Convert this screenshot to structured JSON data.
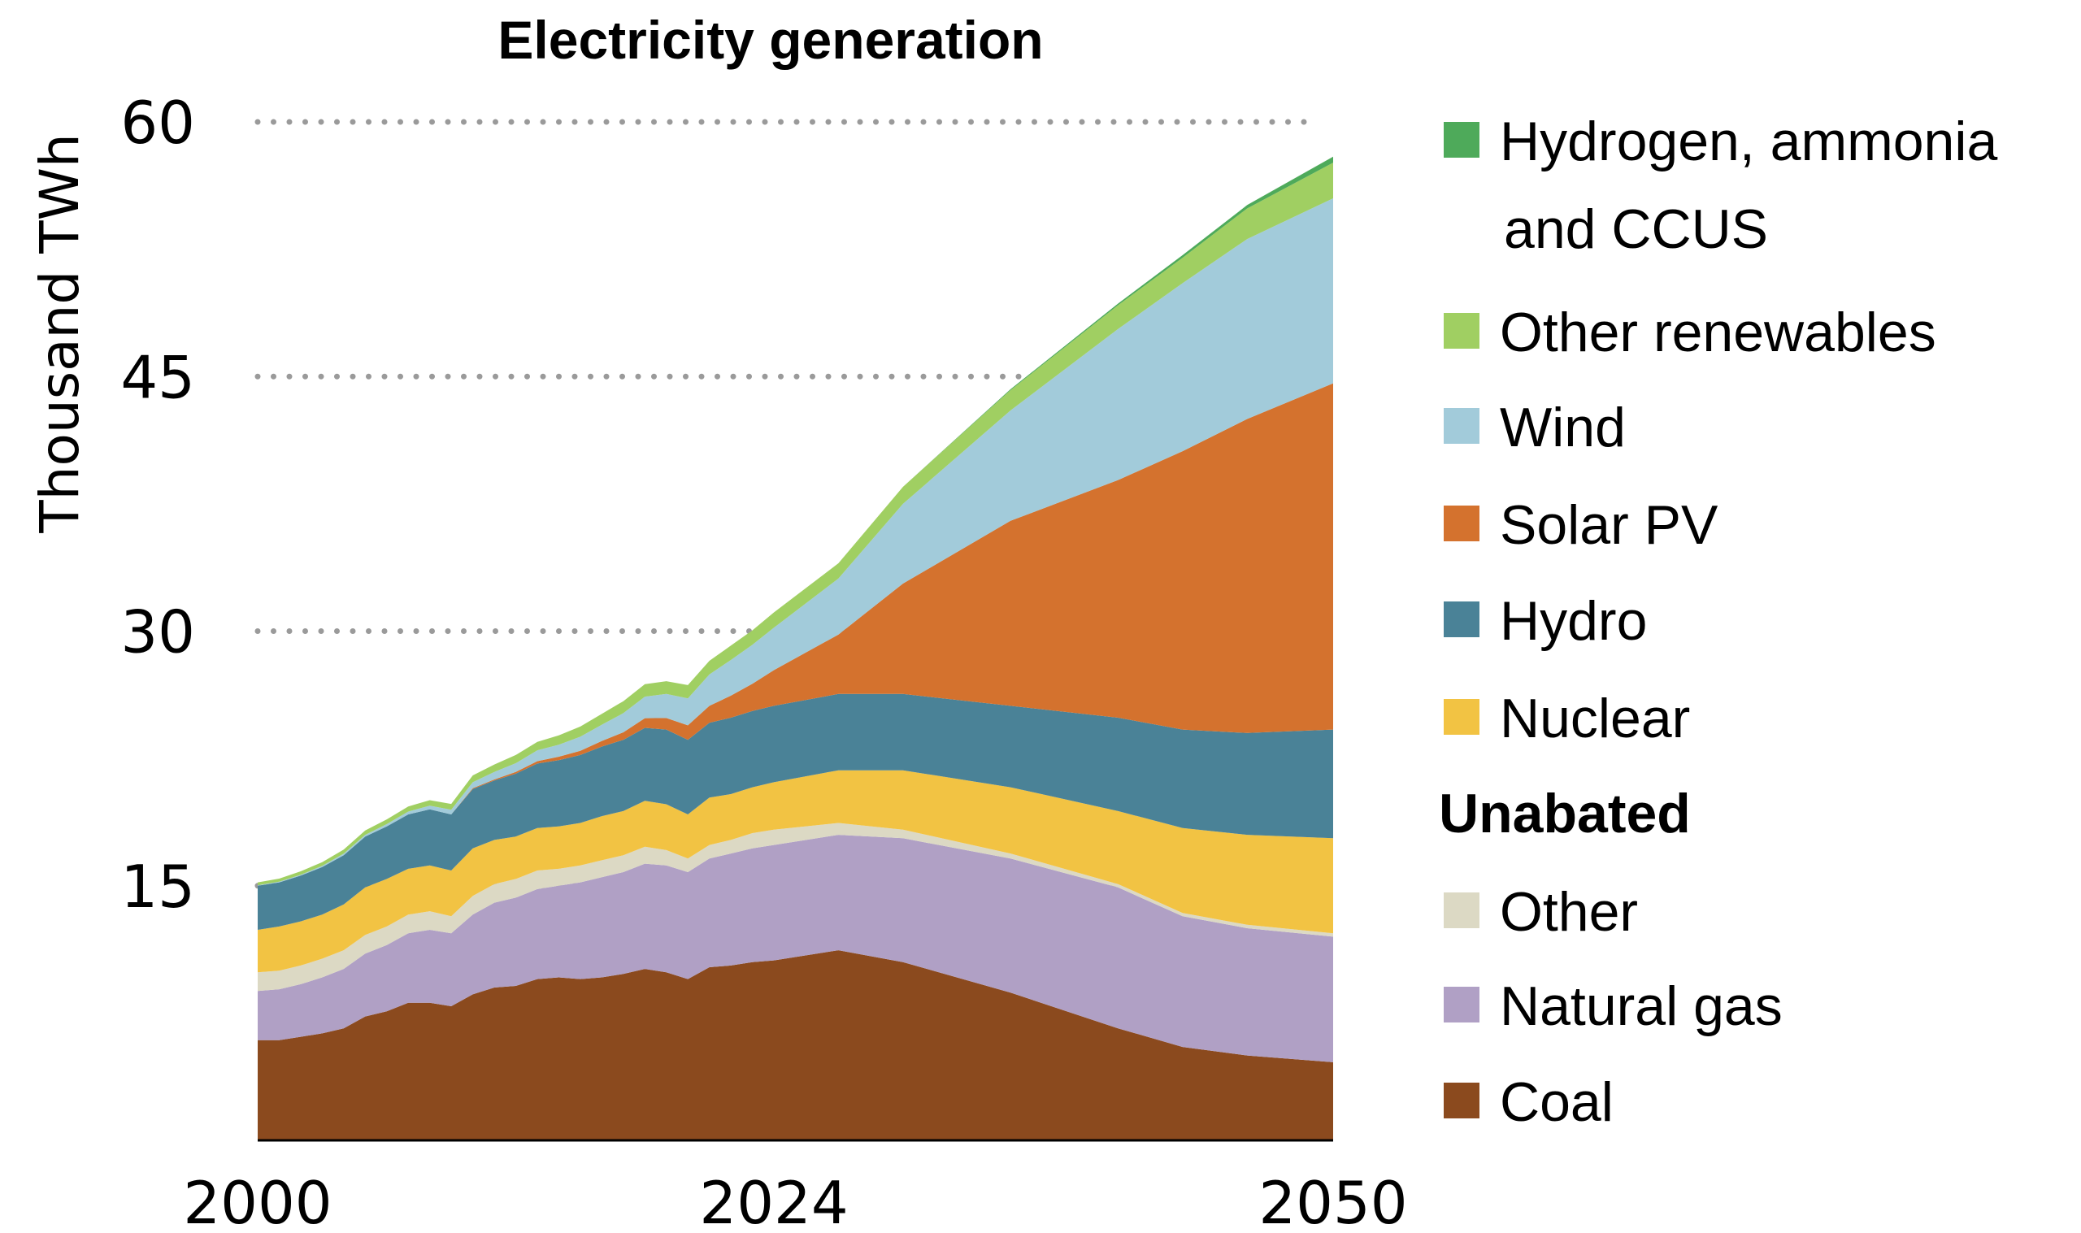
{
  "chart_data": {
    "type": "area",
    "stacked": true,
    "title": "Electricity generation",
    "xlabel": "",
    "ylabel": "Thousand TWh",
    "ylim": [
      0,
      60
    ],
    "xlim": [
      2000,
      2050
    ],
    "yticks": [
      15,
      30,
      45,
      60
    ],
    "xticks": [
      2000,
      2024,
      2050
    ],
    "xtick_labels": [
      "2000",
      "2024",
      "2050"
    ],
    "ytick_labels": [
      "15",
      "30",
      "45",
      "60"
    ],
    "grid": "horizontal-dotted",
    "legend_position": "right",
    "legend_group_heading": "Unabated",
    "x": [
      2000,
      2001,
      2002,
      2003,
      2004,
      2005,
      2006,
      2007,
      2008,
      2009,
      2010,
      2011,
      2012,
      2013,
      2014,
      2015,
      2016,
      2017,
      2018,
      2019,
      2020,
      2021,
      2022,
      2023,
      2024,
      2027,
      2030,
      2035,
      2040,
      2043,
      2046,
      2050
    ],
    "series": [
      {
        "name": "Coal",
        "color": "#8B4A1E",
        "values": [
          5.9,
          5.9,
          6.1,
          6.3,
          6.6,
          7.3,
          7.6,
          8.1,
          8.1,
          7.9,
          8.6,
          9.0,
          9.1,
          9.5,
          9.6,
          9.5,
          9.6,
          9.8,
          10.1,
          9.9,
          9.5,
          10.2,
          10.3,
          10.5,
          10.6,
          11.2,
          10.5,
          8.7,
          6.6,
          5.5,
          5.0,
          4.6
        ]
      },
      {
        "name": "Natural gas",
        "color": "#B0A0C5",
        "values": [
          2.9,
          3.0,
          3.1,
          3.3,
          3.5,
          3.7,
          3.9,
          4.1,
          4.3,
          4.3,
          4.7,
          5.0,
          5.2,
          5.3,
          5.4,
          5.7,
          5.9,
          6.0,
          6.2,
          6.3,
          6.3,
          6.4,
          6.6,
          6.7,
          6.8,
          6.8,
          7.3,
          7.9,
          8.3,
          7.7,
          7.5,
          7.4
        ]
      },
      {
        "name": "Other",
        "color": "#DCD9C4",
        "values": [
          1.1,
          1.1,
          1.1,
          1.1,
          1.1,
          1.1,
          1.1,
          1.1,
          1.1,
          1.0,
          1.1,
          1.1,
          1.1,
          1.1,
          1.0,
          1.0,
          1.0,
          1.0,
          1.0,
          0.9,
          0.8,
          0.8,
          0.8,
          0.9,
          0.9,
          0.7,
          0.5,
          0.3,
          0.2,
          0.2,
          0.2,
          0.2
        ]
      },
      {
        "name": "Nuclear",
        "color": "#F2C343",
        "values": [
          2.5,
          2.6,
          2.6,
          2.6,
          2.7,
          2.8,
          2.8,
          2.7,
          2.7,
          2.7,
          2.8,
          2.6,
          2.5,
          2.5,
          2.5,
          2.5,
          2.6,
          2.6,
          2.7,
          2.7,
          2.6,
          2.8,
          2.7,
          2.7,
          2.8,
          3.1,
          3.5,
          3.9,
          4.3,
          5.0,
          5.3,
          5.6
        ]
      },
      {
        "name": "Hydro",
        "color": "#4A8297",
        "values": [
          2.6,
          2.6,
          2.7,
          2.8,
          2.9,
          3.0,
          3.1,
          3.2,
          3.3,
          3.3,
          3.5,
          3.5,
          3.7,
          3.8,
          3.9,
          4.0,
          4.1,
          4.2,
          4.3,
          4.4,
          4.4,
          4.4,
          4.5,
          4.5,
          4.5,
          4.5,
          4.5,
          4.8,
          5.5,
          5.8,
          6.0,
          6.4
        ]
      },
      {
        "name": "Solar PV",
        "color": "#D4722E",
        "values": [
          0.0,
          0.0,
          0.0,
          0.0,
          0.0,
          0.0,
          0.0,
          0.0,
          0.0,
          0.0,
          0.05,
          0.06,
          0.1,
          0.14,
          0.2,
          0.25,
          0.33,
          0.44,
          0.57,
          0.68,
          0.85,
          1.0,
          1.3,
          1.6,
          2.1,
          3.5,
          6.5,
          10.9,
          14.0,
          16.4,
          18.5,
          20.4
        ]
      },
      {
        "name": "Wind",
        "color": "#A2CBDA",
        "values": [
          0.03,
          0.04,
          0.05,
          0.07,
          0.09,
          0.1,
          0.13,
          0.17,
          0.22,
          0.28,
          0.35,
          0.44,
          0.52,
          0.64,
          0.71,
          0.83,
          0.96,
          1.13,
          1.27,
          1.42,
          1.59,
          1.85,
          2.1,
          2.3,
          2.5,
          3.3,
          4.7,
          6.5,
          8.9,
          9.9,
          10.6,
          10.9
        ]
      },
      {
        "name": "Other renewables",
        "color": "#A0CF62",
        "values": [
          0.17,
          0.18,
          0.2,
          0.22,
          0.24,
          0.26,
          0.28,
          0.3,
          0.32,
          0.34,
          0.4,
          0.44,
          0.48,
          0.5,
          0.55,
          0.6,
          0.64,
          0.7,
          0.74,
          0.75,
          0.78,
          0.8,
          0.85,
          0.85,
          0.9,
          0.9,
          1.0,
          1.2,
          1.4,
          1.5,
          1.8,
          2.1
        ]
      },
      {
        "name": "Hydrogen, ammonia and CCUS",
        "color": "#4EAA5A",
        "values": [
          0.0,
          0.0,
          0.0,
          0.0,
          0.0,
          0.0,
          0.0,
          0.0,
          0.0,
          0.0,
          0.0,
          0.0,
          0.0,
          0.0,
          0.0,
          0.0,
          0.0,
          0.0,
          0.0,
          0.0,
          0.0,
          0.0,
          0.0,
          0.0,
          0.0,
          0.0,
          0.0,
          0.05,
          0.1,
          0.15,
          0.2,
          0.35
        ]
      }
    ]
  },
  "legend": {
    "items": [
      {
        "label_line1": "Hydrogen, ammonia",
        "label_line2": "and CCUS",
        "color": "#4EAA5A"
      },
      {
        "label_line1": "Other renewables",
        "color": "#A0CF62"
      },
      {
        "label_line1": "Wind",
        "color": "#A2CBDA"
      },
      {
        "label_line1": "Solar PV",
        "color": "#D4722E"
      },
      {
        "label_line1": "Hydro",
        "color": "#4A8297"
      },
      {
        "label_line1": "Nuclear",
        "color": "#F2C343"
      },
      {
        "label_line1": "Other",
        "color": "#DCD9C4"
      },
      {
        "label_line1": "Natural gas",
        "color": "#B0A0C5"
      },
      {
        "label_line1": "Coal",
        "color": "#8B4A1E"
      }
    ]
  }
}
